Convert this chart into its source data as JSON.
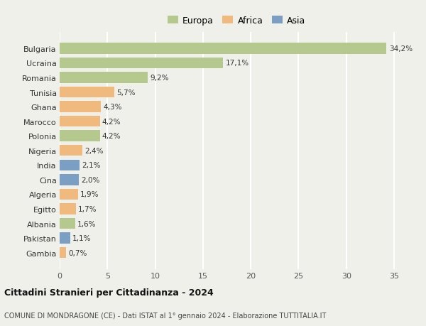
{
  "categories": [
    "Bulgaria",
    "Ucraina",
    "Romania",
    "Tunisia",
    "Ghana",
    "Marocco",
    "Polonia",
    "Nigeria",
    "India",
    "Cina",
    "Algeria",
    "Egitto",
    "Albania",
    "Pakistan",
    "Gambia"
  ],
  "values": [
    34.2,
    17.1,
    9.2,
    5.7,
    4.3,
    4.2,
    4.2,
    2.4,
    2.1,
    2.0,
    1.9,
    1.7,
    1.6,
    1.1,
    0.7
  ],
  "labels": [
    "34,2%",
    "17,1%",
    "9,2%",
    "5,7%",
    "4,3%",
    "4,2%",
    "4,2%",
    "2,4%",
    "2,1%",
    "2,0%",
    "1,9%",
    "1,7%",
    "1,6%",
    "1,1%",
    "0,7%"
  ],
  "colors": [
    "#b5c98e",
    "#b5c98e",
    "#b5c98e",
    "#f0b97e",
    "#f0b97e",
    "#f0b97e",
    "#b5c98e",
    "#f0b97e",
    "#7a9fc2",
    "#7a9fc2",
    "#f0b97e",
    "#f0b97e",
    "#b5c98e",
    "#7a9fc2",
    "#f0b97e"
  ],
  "legend_labels": [
    "Europa",
    "Africa",
    "Asia"
  ],
  "legend_colors": [
    "#b5c98e",
    "#f0b97e",
    "#7a9fc2"
  ],
  "title": "Cittadini Stranieri per Cittadinanza - 2024",
  "subtitle": "COMUNE DI MONDRAGONE (CE) - Dati ISTAT al 1° gennaio 2024 - Elaborazione TUTTITALIA.IT",
  "xlim": [
    0,
    37
  ],
  "xticks": [
    0,
    5,
    10,
    15,
    20,
    25,
    30,
    35
  ],
  "background_color": "#f0f0eb",
  "grid_color": "#ffffff",
  "bar_height": 0.75
}
